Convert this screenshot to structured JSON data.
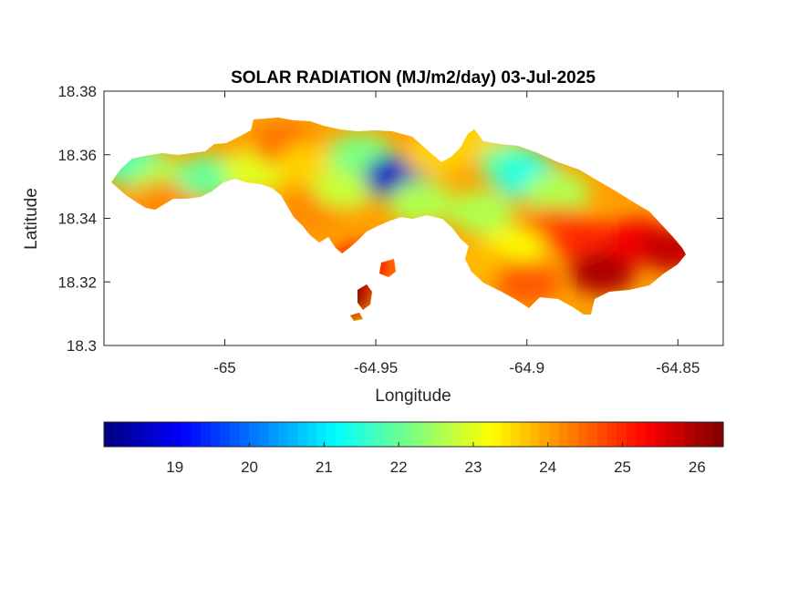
{
  "chart_data": {
    "type": "heatmap",
    "title": "SOLAR RADIATION (MJ/m2/day) 03-Jul-2025",
    "xlabel": "Longitude",
    "ylabel": "Latitude",
    "xlim": [
      -65.04,
      -64.835
    ],
    "ylim": [
      18.3,
      18.38
    ],
    "x_ticks": [
      -65,
      -64.95,
      -64.9,
      -64.85
    ],
    "x_tick_labels": [
      "-65",
      "-64.95",
      "-64.9",
      "-64.85"
    ],
    "y_ticks": [
      18.3,
      18.32,
      18.34,
      18.36,
      18.38
    ],
    "y_tick_labels": [
      "18.3",
      "18.32",
      "18.34",
      "18.36",
      "18.38"
    ],
    "grid": false,
    "colormap": "jet",
    "clim": [
      18.05,
      26.35
    ],
    "colorbar": {
      "location": "bottom",
      "ticks": [
        19,
        20,
        21,
        22,
        23,
        24,
        25,
        26
      ],
      "tick_labels": [
        "19",
        "20",
        "21",
        "22",
        "23",
        "24",
        "25",
        "26"
      ]
    },
    "field_centers": [
      {
        "lon": -65.03,
        "lat": 18.357,
        "value": 21.8
      },
      {
        "lon": -65.02,
        "lat": 18.352,
        "value": 22.6
      },
      {
        "lon": -65.02,
        "lat": 18.345,
        "value": 24.2
      },
      {
        "lon": -65.005,
        "lat": 18.353,
        "value": 22.0
      },
      {
        "lon": -64.99,
        "lat": 18.355,
        "value": 23.0
      },
      {
        "lon": -64.98,
        "lat": 18.363,
        "value": 24.4
      },
      {
        "lon": -64.972,
        "lat": 18.357,
        "value": 23.6
      },
      {
        "lon": -64.97,
        "lat": 18.343,
        "value": 24.2
      },
      {
        "lon": -64.96,
        "lat": 18.35,
        "value": 22.8
      },
      {
        "lon": -64.955,
        "lat": 18.36,
        "value": 22.2
      },
      {
        "lon": -64.943,
        "lat": 18.353,
        "value": 18.6
      },
      {
        "lon": -64.935,
        "lat": 18.345,
        "value": 22.6
      },
      {
        "lon": -64.93,
        "lat": 18.36,
        "value": 23.6
      },
      {
        "lon": -64.915,
        "lat": 18.342,
        "value": 22.6
      },
      {
        "lon": -64.915,
        "lat": 18.365,
        "value": 23.6
      },
      {
        "lon": -64.905,
        "lat": 18.357,
        "value": 22.0
      },
      {
        "lon": -64.9,
        "lat": 18.353,
        "value": 21.4
      },
      {
        "lon": -64.89,
        "lat": 18.348,
        "value": 22.6
      },
      {
        "lon": -64.89,
        "lat": 18.337,
        "value": 24.6
      },
      {
        "lon": -64.905,
        "lat": 18.33,
        "value": 23.2
      },
      {
        "lon": -64.915,
        "lat": 18.325,
        "value": 23.8
      },
      {
        "lon": -64.9,
        "lat": 18.32,
        "value": 24.6
      },
      {
        "lon": -64.88,
        "lat": 18.333,
        "value": 25.0
      },
      {
        "lon": -64.875,
        "lat": 18.323,
        "value": 26.0
      },
      {
        "lon": -64.863,
        "lat": 18.333,
        "value": 25.4
      },
      {
        "lon": -64.852,
        "lat": 18.33,
        "value": 25.8
      },
      {
        "lon": -64.955,
        "lat": 18.325,
        "value": 25.2
      },
      {
        "lon": -64.962,
        "lat": 18.316,
        "value": 26.2
      }
    ]
  }
}
